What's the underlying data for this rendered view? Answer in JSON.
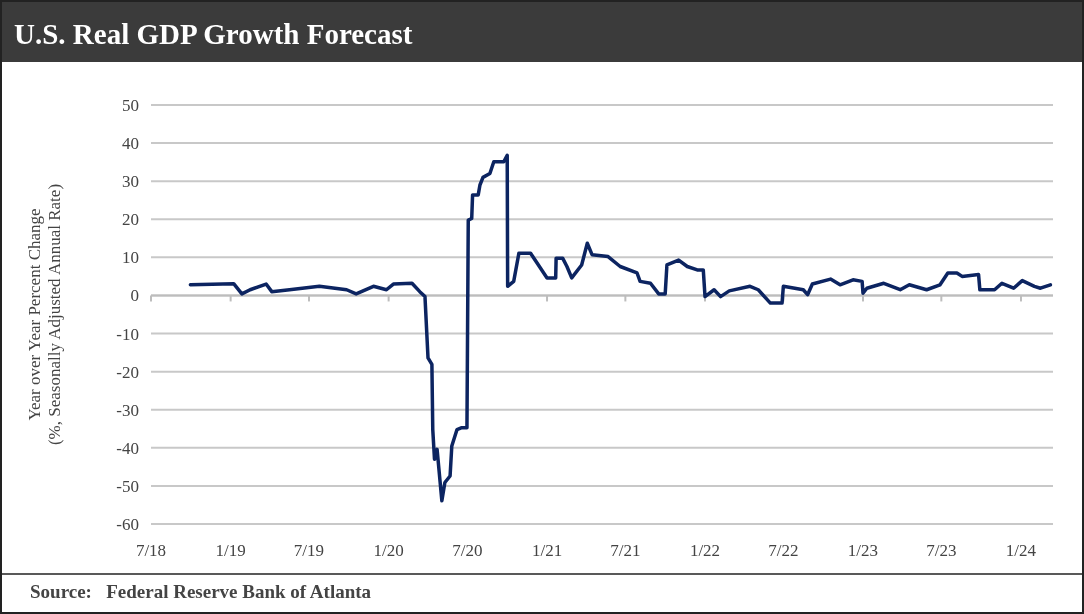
{
  "chart_data": {
    "type": "line",
    "title": "U.S. Real GDP Growth Forecast",
    "ylabel": "Year over Year Percent  Change\n(%, Seasonally Adjusted Annual Rate)",
    "annotations": [
      "Source:   Federal Reserve Bank of Atlanta"
    ],
    "xlim": [
      "2018-07-01",
      "2024-03-15"
    ],
    "xticks": [
      {
        "value": "2018-07-01",
        "label": "7/18"
      },
      {
        "value": "2019-01-01",
        "label": "1/19"
      },
      {
        "value": "2019-07-01",
        "label": "7/19"
      },
      {
        "value": "2020-01-01",
        "label": "1/20"
      },
      {
        "value": "2020-07-01",
        "label": "7/20"
      },
      {
        "value": "2021-01-01",
        "label": "1/21"
      },
      {
        "value": "2021-07-01",
        "label": "7/21"
      },
      {
        "value": "2022-01-01",
        "label": "1/22"
      },
      {
        "value": "2022-07-01",
        "label": "7/22"
      },
      {
        "value": "2023-01-01",
        "label": "1/23"
      },
      {
        "value": "2023-07-01",
        "label": "7/23"
      },
      {
        "value": "2024-01-01",
        "label": "1/24"
      }
    ],
    "ylim": [
      -60,
      50
    ],
    "yticks": [
      -60,
      -50,
      -40,
      -30,
      -20,
      -10,
      0,
      10,
      20,
      30,
      40,
      50
    ],
    "grid": "y",
    "series": [
      {
        "color": "#0c2461",
        "x": [
          "2018-09-30",
          "2019-01-08",
          "2019-01-27",
          "2019-02-15",
          "2019-03-24",
          "2019-04-06",
          "2019-05-17",
          "2019-07-25",
          "2019-09-26",
          "2019-10-18",
          "2019-11-27",
          "2019-12-27",
          "2020-01-12",
          "2020-02-24",
          "2020-03-13",
          "2020-03-25",
          "2020-04-01",
          "2020-04-10",
          "2020-04-12",
          "2020-04-16",
          "2020-04-22",
          "2020-05-03",
          "2020-05-10",
          "2020-05-22",
          "2020-05-26",
          "2020-06-07",
          "2020-06-18",
          "2020-06-30",
          "2020-07-03",
          "2020-07-11",
          "2020-07-13",
          "2020-07-26",
          "2020-07-30",
          "2020-08-06",
          "2020-08-22",
          "2020-08-31",
          "2020-09-23",
          "2020-10-01",
          "2020-10-02",
          "2020-10-16",
          "2020-10-28",
          "2020-11-24",
          "2020-12-09",
          "2021-01-01",
          "2021-01-21",
          "2021-01-22",
          "2021-02-06",
          "2021-02-16",
          "2021-02-27",
          "2021-03-22",
          "2021-04-04",
          "2021-04-15",
          "2021-05-22",
          "2021-06-19",
          "2021-07-28",
          "2021-08-04",
          "2021-08-28",
          "2021-09-16",
          "2021-10-01",
          "2021-10-05",
          "2021-11-01",
          "2021-11-21",
          "2021-12-14",
          "2021-12-28",
          "2022-01-01",
          "2022-01-22",
          "2022-02-06",
          "2022-02-26",
          "2022-04-15",
          "2022-05-04",
          "2022-06-01",
          "2022-06-28",
          "2022-07-01",
          "2022-08-16",
          "2022-08-26",
          "2022-09-06",
          "2022-10-18",
          "2022-11-09",
          "2022-12-09",
          "2022-12-30",
          "2023-01-01",
          "2023-01-10",
          "2023-02-18",
          "2023-03-28",
          "2023-04-18",
          "2023-05-28",
          "2023-06-28",
          "2023-07-16",
          "2023-08-06",
          "2023-08-18",
          "2023-09-25",
          "2023-09-28",
          "2023-11-01",
          "2023-11-18",
          "2023-12-15",
          "2024-01-04",
          "2024-02-01",
          "2024-02-15",
          "2024-03-09"
        ],
        "values": [
          2.8,
          3.1,
          0.4,
          1.5,
          3.0,
          1.0,
          1.5,
          2.4,
          1.5,
          0.4,
          2.4,
          1.5,
          3.0,
          3.2,
          1.0,
          -0.3,
          -16.4,
          -18.1,
          -35.2,
          -43.0,
          -40.4,
          -53.9,
          -49.1,
          -47.4,
          -39.5,
          -35.2,
          -34.7,
          -34.7,
          19.8,
          20.2,
          26.4,
          26.4,
          29.0,
          31.0,
          32.0,
          35.1,
          35.1,
          36.8,
          2.4,
          3.7,
          11.1,
          11.1,
          8.5,
          4.6,
          4.6,
          9.8,
          9.8,
          7.6,
          4.6,
          8.0,
          13.7,
          10.7,
          10.2,
          7.6,
          5.9,
          3.7,
          3.2,
          0.4,
          0.4,
          8.0,
          9.3,
          7.6,
          6.7,
          6.7,
          -0.3,
          1.5,
          -0.3,
          1.2,
          2.4,
          1.5,
          -2.0,
          -2.0,
          2.4,
          1.5,
          0.2,
          3.0,
          4.3,
          2.8,
          4.1,
          3.7,
          0.6,
          1.9,
          3.2,
          1.5,
          2.8,
          1.5,
          2.8,
          5.9,
          5.9,
          5.0,
          5.5,
          1.5,
          1.5,
          3.2,
          1.9,
          3.9,
          2.4,
          1.9,
          2.8
        ]
      }
    ]
  }
}
